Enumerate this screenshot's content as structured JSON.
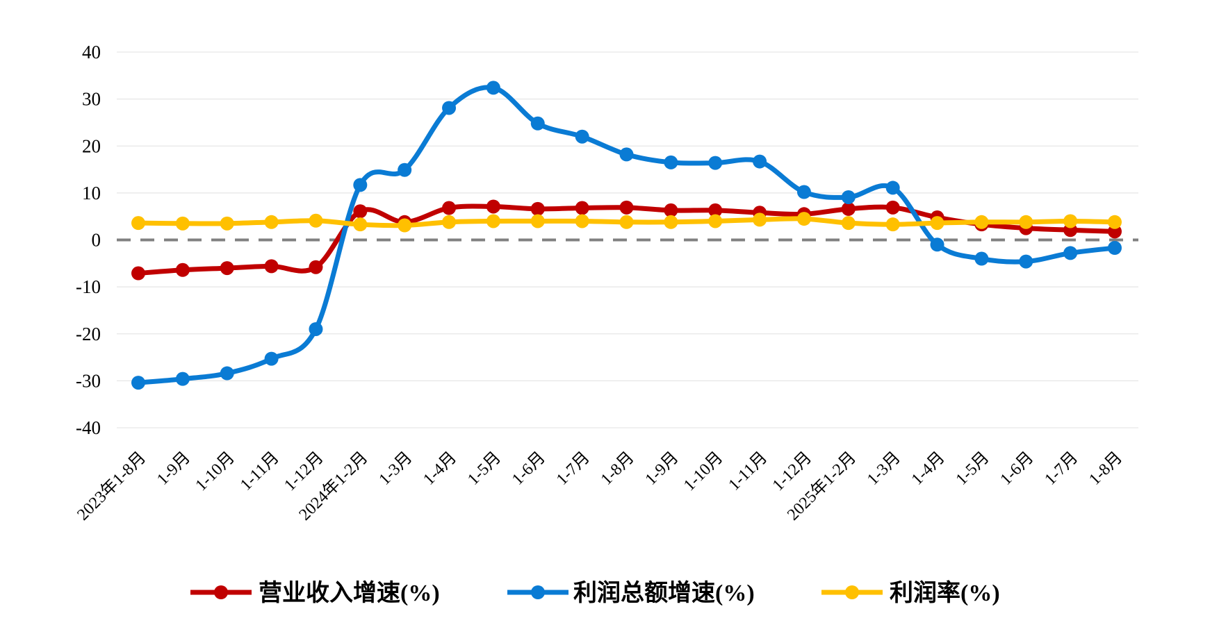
{
  "chart_data": {
    "type": "line",
    "title": "",
    "xlabel": "",
    "ylabel": "",
    "ylim": [
      -40,
      40
    ],
    "yticks": [
      40,
      30,
      20,
      10,
      0,
      -10,
      -20,
      -30,
      -40
    ],
    "grid": true,
    "legend_position": "bottom",
    "categories": [
      "2023年1-8月",
      "1-9月",
      "1-10月",
      "1-11月",
      "1-12月",
      "2024年1-2月",
      "1-3月",
      "1-4月",
      "1-5月",
      "1-6月",
      "1-7月",
      "1-8月",
      "1-9月",
      "1-10月",
      "1-11月",
      "1-12月",
      "2025年1-2月",
      "1-3月",
      "1-4月",
      "1-5月",
      "1-6月",
      "1-7月",
      "1-8月"
    ],
    "series": [
      {
        "name": "营业收入增速(%)",
        "color": "#C00000",
        "values": [
          -7.1,
          -6.4,
          -6.0,
          -5.6,
          -5.8,
          6.1,
          3.8,
          6.8,
          7.1,
          6.6,
          6.8,
          6.9,
          6.3,
          6.3,
          5.8,
          5.5,
          6.6,
          6.9,
          4.8,
          3.3,
          2.5,
          2.1,
          1.8
        ]
      },
      {
        "name": "利润总额增速(%)",
        "color": "#0A7BD4",
        "values": [
          -30.4,
          -29.6,
          -28.4,
          -25.3,
          -19.0,
          11.7,
          14.9,
          28.1,
          32.4,
          24.8,
          22.0,
          18.2,
          16.5,
          16.4,
          16.7,
          10.2,
          9.1,
          11.1,
          -1.0,
          -4.0,
          -4.6,
          -2.8,
          -1.7
        ]
      },
      {
        "name": "利润率(%)",
        "color": "#FFC000",
        "values": [
          3.6,
          3.5,
          3.5,
          3.8,
          4.1,
          3.3,
          3.1,
          3.8,
          4.0,
          4.0,
          4.0,
          3.8,
          3.8,
          4.0,
          4.3,
          4.5,
          3.6,
          3.3,
          3.6,
          3.8,
          3.8,
          4.0,
          3.8
        ]
      }
    ]
  }
}
